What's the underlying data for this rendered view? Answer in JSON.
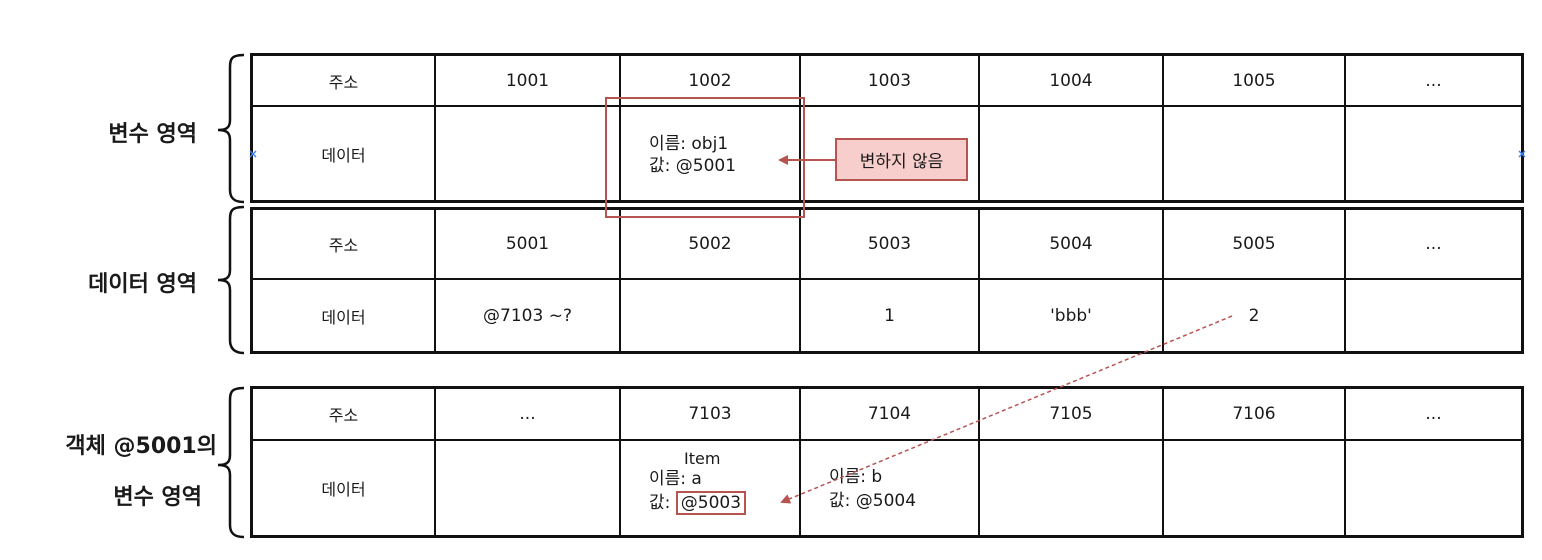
{
  "regions": {
    "variable_area": "변수 영역",
    "data_area": "데이터 영역",
    "object_area_line1": "객체 @5001의",
    "object_area_line2": "변수 영역"
  },
  "row_labels": {
    "address": "주소",
    "data": "데이터"
  },
  "table1": {
    "addresses": [
      "1001",
      "1002",
      "1003",
      "1004",
      "1005",
      "..."
    ],
    "var_name": "이름: obj1",
    "var_value": "값: @5001"
  },
  "table2": {
    "addresses": [
      "5001",
      "5002",
      "5003",
      "5004",
      "5005",
      "..."
    ],
    "data": [
      "@7103 ~?",
      "",
      "1",
      "'bbb'",
      "2",
      ""
    ]
  },
  "table3": {
    "addresses": [
      "...",
      "7103",
      "7104",
      "7105",
      "7106",
      "..."
    ],
    "item_label": "Item",
    "var_a_name": "이름: a",
    "var_a_value_prefix": "값: ",
    "var_a_value": "@5003",
    "var_b_name": "이름: b",
    "var_b_value": "값: @5004"
  },
  "note": "변하지 않음",
  "colors": {
    "highlight": "#b85450",
    "note_fill": "#f8cecc",
    "border": "#111111"
  }
}
